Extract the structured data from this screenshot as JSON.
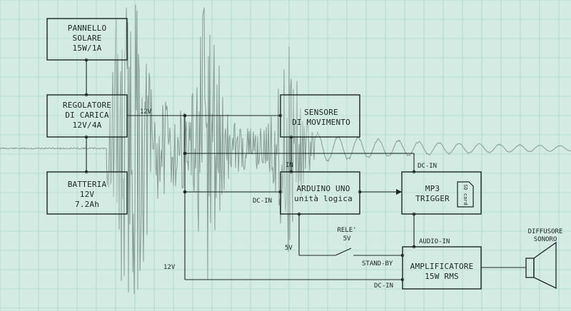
{
  "colors": {
    "background": "#d3ebe3",
    "grid": "#9ccfc2",
    "waveform": "#7f928b",
    "ink": "#1e2626"
  },
  "blocks": {
    "solar_panel": [
      "PANNELLO",
      "SOLARE",
      "15W/1A"
    ],
    "charge_controller": [
      "REGOLATORE",
      "DI CARICA",
      "12V/4A"
    ],
    "battery": [
      "BATTERIA",
      "12V",
      "7.2Ah"
    ],
    "motion_sensor": [
      "SENSORE",
      "DI MOVIMENTO"
    ],
    "arduino": [
      "ARDUINO UNO",
      "unità logica"
    ],
    "mp3_trigger": [
      "MP3",
      "TRIGGER"
    ],
    "amplifier": [
      "AMPLIFICATORE",
      "15W RMS"
    ],
    "speaker": [
      "DIFFUSORE",
      "SONORO"
    ],
    "sd_card": "SD card"
  },
  "relay": [
    "RELE'",
    "5V"
  ],
  "labels": {
    "v12_top": "12V",
    "in": "IN",
    "dc_in_arduino": "DC-IN",
    "dc_in_mp3": "DC-IN",
    "v5": "5V",
    "v12_bottom": "12V",
    "audio_in": "AUDIO-IN",
    "stand_by": "STAND-BY",
    "dc_in_amp": "DC-IN"
  }
}
